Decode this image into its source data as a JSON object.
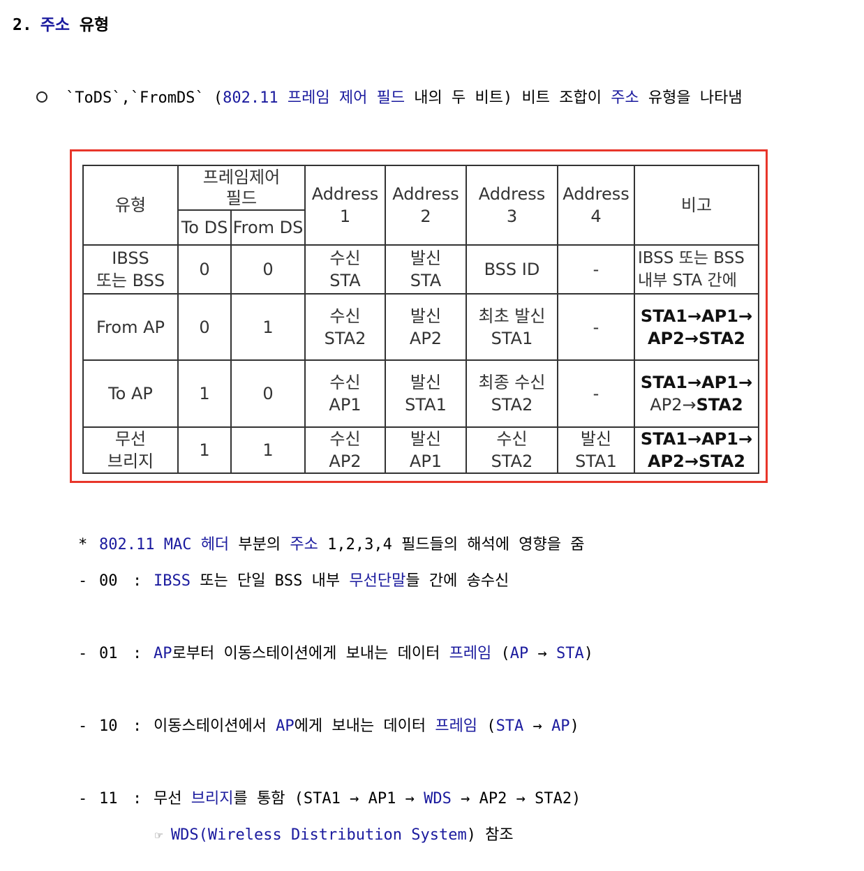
{
  "heading": {
    "number": "2.",
    "title_blue": "주소",
    "title_black": "유형"
  },
  "bullet": {
    "part1": "`ToDS`,`FromDS` (",
    "part2": "802.11 프레임 제어 필드",
    "part3": " 내의 두 비트) 비트 조합이 ",
    "part4": "주소",
    "part5": " 유형을 나타냄"
  },
  "table": {
    "headers": {
      "type": "유형",
      "frame_control_line1": "프레임제어",
      "frame_control_line2": "필드",
      "to_ds": "To DS",
      "from_ds": "From DS",
      "addr1_line1": "Address",
      "addr1_line2": "1",
      "addr2_line1": "Address",
      "addr2_line2": "2",
      "addr3_line1": "Address",
      "addr3_line2": "3",
      "addr4_line1": "Address",
      "addr4_line2": "4",
      "remark": "비고"
    },
    "rows": [
      {
        "type_line1": "IBSS",
        "type_line2": "또는 BSS",
        "to_ds": "0",
        "from_ds": "0",
        "a1_line1": "수신",
        "a1_line2": "STA",
        "a2_line1": "발신",
        "a2_line2": "STA",
        "a3_line1": "BSS ID",
        "a3_line2": "",
        "a4_line1": "-",
        "a4_line2": "",
        "remark_line1": "IBSS 또는 BSS",
        "remark_line2": "내부 STA 간에"
      },
      {
        "type_line1": "From AP",
        "type_line2": "",
        "to_ds": "0",
        "from_ds": "1",
        "a1_line1": "수신",
        "a1_line2": "STA2",
        "a2_line1": "발신",
        "a2_line2": "AP2",
        "a3_line1": "최초 발신",
        "a3_line2": "STA1",
        "a4_line1": "-",
        "a4_line2": "",
        "remark_line1": "STA1→AP1→",
        "remark_line2": "AP2→STA2"
      },
      {
        "type_line1": "To AP",
        "type_line2": "",
        "to_ds": "1",
        "from_ds": "0",
        "a1_line1": "수신",
        "a1_line2": "AP1",
        "a2_line1": "발신",
        "a2_line2": "STA1",
        "a3_line1": "최종 수신",
        "a3_line2": "STA2",
        "a4_line1": "-",
        "a4_line2": "",
        "remark_line1": "STA1→AP1→",
        "remark_line2a": "AP2→",
        "remark_line2b": "STA2"
      },
      {
        "type_line1": "무선",
        "type_line2": "브리지",
        "to_ds": "1",
        "from_ds": "1",
        "a1_line1": "수신",
        "a1_line2": "AP2",
        "a2_line1": "발신",
        "a2_line2": "AP1",
        "a3_line1": "수신",
        "a3_line2": "STA2",
        "a4_line1": "발신",
        "a4_line2": "STA1",
        "remark_line1": "STA1→AP1→",
        "remark_line2": "AP2→STA2"
      }
    ]
  },
  "notes": {
    "star": {
      "lead": "*",
      "b1": "802.11 MAC 헤더",
      "t1": " 부분의 ",
      "b2": "주소",
      "t2": " 1,2,3,4 필드들의 해석에 영향을 줌"
    },
    "n00": {
      "lead": "-",
      "code": "00",
      "colon": ":",
      "b1": "IBSS",
      "t1": " 또는 단일 BSS 내부 ",
      "b2": "무선단말",
      "t2": "들 간에 송수신"
    },
    "n01": {
      "lead": "-",
      "code": "01",
      "colon": ":",
      "b1": "AP",
      "t1": "로부터 이동스테이션에게 보내는 데이터 ",
      "b2": "프레임",
      "t2": " (",
      "b3": "AP",
      "t3": " → ",
      "b4": "STA",
      "t4": ")"
    },
    "n10": {
      "lead": "-",
      "code": "10",
      "colon": ":",
      "t0": "이동스테이션에서 ",
      "b1": "AP",
      "t1": "에게 보내는 데이터 ",
      "b2": "프레임",
      "t2": " (",
      "b3": "STA",
      "t3": " → ",
      "b4": "AP",
      "t4": ")"
    },
    "n11": {
      "lead": "-",
      "code": "11",
      "colon": ":",
      "t0": "무선 ",
      "b1": "브리지",
      "t1": "를 통함 (STA1 → AP1 → ",
      "b2": "WDS",
      "t2": " → AP2 → STA2)"
    },
    "wds": {
      "hand": "☞",
      "b1": "WDS(Wireless Distribution System",
      "t1": ") 참조"
    }
  },
  "colors": {
    "link_blue": "#1a1a9e",
    "frame_red": "#e8362a"
  }
}
